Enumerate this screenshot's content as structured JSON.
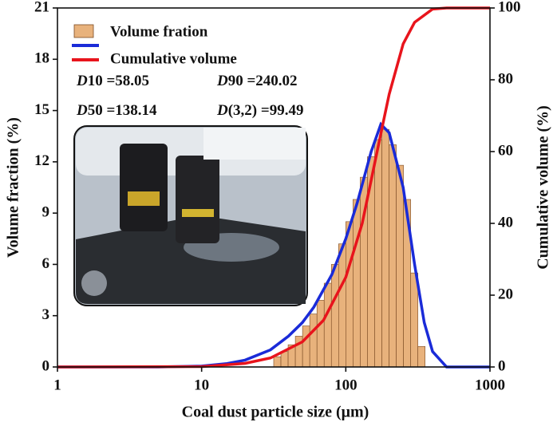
{
  "chart_data": {
    "type": "histogram",
    "xlabel": "Coal dust particle size (μm)",
    "ylabel": "Volume fraction (%)",
    "y2label": "Cumulative volume (%)",
    "xscale": "log",
    "xlim": [
      1,
      1000
    ],
    "xticks": [
      1,
      10,
      100,
      1000
    ],
    "ylim": [
      0,
      21
    ],
    "yticks": [
      0,
      3,
      6,
      9,
      12,
      15,
      18,
      21
    ],
    "y2lim": [
      0,
      100
    ],
    "y2ticks": [
      0,
      20,
      40,
      60,
      80,
      100
    ],
    "bar_name": "Volume fration",
    "bar_color": "#e8b27c",
    "bins": [
      31.62,
      35.48,
      39.81,
      44.67,
      50.12,
      56.23,
      63.1,
      70.79,
      79.43,
      89.13,
      100,
      112.2,
      125.89,
      141.25,
      158.49,
      177.83,
      199.53,
      223.87,
      251.19,
      281.84,
      316.23,
      354.81
    ],
    "counts": [
      0.6,
      0.9,
      1.3,
      1.8,
      2.4,
      3.1,
      3.9,
      4.9,
      6.0,
      7.2,
      8.5,
      9.8,
      11.1,
      12.3,
      13.3,
      13.9,
      13.0,
      11.8,
      9.8,
      5.5,
      1.2
    ],
    "series": [
      {
        "color": "#1a2bd8",
        "x": [
          1,
          5,
          10,
          15,
          20,
          30,
          40,
          50,
          60,
          80,
          100,
          120,
          150,
          175,
          200,
          250,
          300,
          350,
          400,
          500,
          1000
        ],
        "values": [
          0,
          0,
          0.05,
          0.2,
          0.4,
          1.0,
          1.8,
          2.6,
          3.5,
          5.4,
          7.5,
          9.6,
          12.6,
          14.2,
          13.7,
          10.5,
          6.0,
          2.6,
          0.9,
          0,
          0
        ]
      },
      {
        "name": "Cumulative volume",
        "color": "#e8141c",
        "axis": "y2",
        "x": [
          1,
          10,
          20,
          30,
          50,
          70,
          100,
          130,
          175,
          200,
          250,
          300,
          400,
          500,
          1000
        ],
        "values": [
          0,
          0.1,
          1,
          2.5,
          7,
          13,
          25,
          40,
          65,
          76,
          90,
          96,
          99.7,
          100,
          100
        ]
      }
    ],
    "annotations": [
      {
        "symbol": "D",
        "text": "10 =58.05"
      },
      {
        "symbol": "D",
        "text": "90 =240.02"
      },
      {
        "symbol": "D",
        "text": "50 =138.14"
      },
      {
        "symbol": "D",
        "text": "(3,2) =99.49"
      }
    ]
  }
}
